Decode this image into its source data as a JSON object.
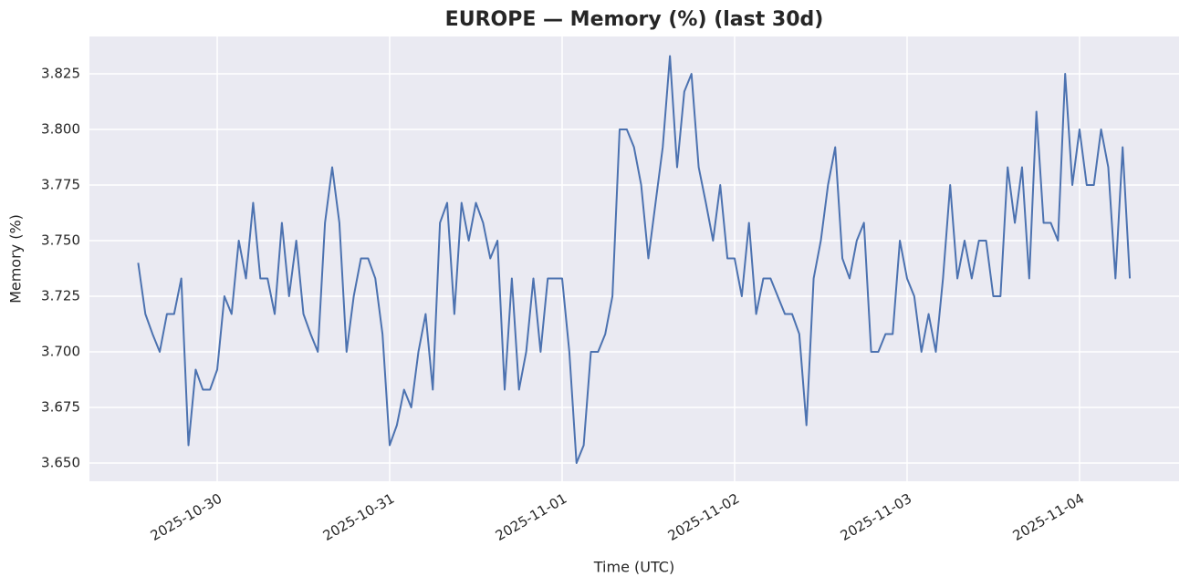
{
  "chart_data": {
    "type": "line",
    "title": "EUROPE — Memory (%) (last 30d)",
    "x_label": "Time (UTC)",
    "y_label": "Memory (%)",
    "x": [
      "2025-10-29 13:00",
      "2025-10-29 14:00",
      "2025-10-29 15:00",
      "2025-10-29 16:00",
      "2025-10-29 17:00",
      "2025-10-29 18:00",
      "2025-10-29 19:00",
      "2025-10-29 20:00",
      "2025-10-29 21:00",
      "2025-10-29 22:00",
      "2025-10-29 23:00",
      "2025-10-30 00:00",
      "2025-10-30 01:00",
      "2025-10-30 02:00",
      "2025-10-30 03:00",
      "2025-10-30 04:00",
      "2025-10-30 05:00",
      "2025-10-30 06:00",
      "2025-10-30 07:00",
      "2025-10-30 08:00",
      "2025-10-30 09:00",
      "2025-10-30 10:00",
      "2025-10-30 11:00",
      "2025-10-30 12:00",
      "2025-10-30 13:00",
      "2025-10-30 14:00",
      "2025-10-30 15:00",
      "2025-10-30 16:00",
      "2025-10-30 17:00",
      "2025-10-30 18:00",
      "2025-10-30 19:00",
      "2025-10-30 20:00",
      "2025-10-30 21:00",
      "2025-10-30 22:00",
      "2025-10-30 23:00",
      "2025-10-31 00:00",
      "2025-10-31 01:00",
      "2025-10-31 02:00",
      "2025-10-31 03:00",
      "2025-10-31 04:00",
      "2025-10-31 05:00",
      "2025-10-31 06:00",
      "2025-10-31 07:00",
      "2025-10-31 08:00",
      "2025-10-31 09:00",
      "2025-10-31 10:00",
      "2025-10-31 11:00",
      "2025-10-31 12:00",
      "2025-10-31 13:00",
      "2025-10-31 14:00",
      "2025-10-31 15:00",
      "2025-10-31 16:00",
      "2025-10-31 17:00",
      "2025-10-31 18:00",
      "2025-10-31 19:00",
      "2025-10-31 20:00",
      "2025-10-31 21:00",
      "2025-10-31 22:00",
      "2025-10-31 23:00",
      "2025-11-01 00:00",
      "2025-11-01 01:00",
      "2025-11-01 02:00",
      "2025-11-01 03:00",
      "2025-11-01 04:00",
      "2025-11-01 05:00",
      "2025-11-01 06:00",
      "2025-11-01 07:00",
      "2025-11-01 08:00",
      "2025-11-01 09:00",
      "2025-11-01 10:00",
      "2025-11-01 11:00",
      "2025-11-01 12:00",
      "2025-11-01 13:00",
      "2025-11-01 14:00",
      "2025-11-01 15:00",
      "2025-11-01 16:00",
      "2025-11-01 17:00",
      "2025-11-01 18:00",
      "2025-11-01 19:00",
      "2025-11-01 20:00",
      "2025-11-01 21:00",
      "2025-11-01 22:00",
      "2025-11-01 23:00",
      "2025-11-02 00:00",
      "2025-11-02 01:00",
      "2025-11-02 02:00",
      "2025-11-02 03:00",
      "2025-11-02 04:00",
      "2025-11-02 05:00",
      "2025-11-02 06:00",
      "2025-11-02 07:00",
      "2025-11-02 08:00",
      "2025-11-02 09:00",
      "2025-11-02 10:00",
      "2025-11-02 11:00",
      "2025-11-02 12:00",
      "2025-11-02 13:00",
      "2025-11-02 14:00",
      "2025-11-02 15:00",
      "2025-11-02 16:00",
      "2025-11-02 17:00",
      "2025-11-02 18:00",
      "2025-11-02 19:00",
      "2025-11-02 20:00",
      "2025-11-02 21:00",
      "2025-11-02 22:00",
      "2025-11-02 23:00",
      "2025-11-03 00:00",
      "2025-11-03 01:00",
      "2025-11-03 02:00",
      "2025-11-03 03:00",
      "2025-11-03 04:00",
      "2025-11-03 05:00",
      "2025-11-03 06:00",
      "2025-11-03 07:00",
      "2025-11-03 08:00",
      "2025-11-03 09:00",
      "2025-11-03 10:00",
      "2025-11-03 11:00",
      "2025-11-03 12:00",
      "2025-11-03 13:00",
      "2025-11-03 14:00",
      "2025-11-03 15:00",
      "2025-11-03 16:00",
      "2025-11-03 17:00",
      "2025-11-03 18:00",
      "2025-11-03 19:00",
      "2025-11-03 20:00",
      "2025-11-03 21:00",
      "2025-11-03 22:00",
      "2025-11-03 23:00",
      "2025-11-04 00:00",
      "2025-11-04 01:00",
      "2025-11-04 02:00",
      "2025-11-04 03:00",
      "2025-11-04 04:00",
      "2025-11-04 05:00",
      "2025-11-04 06:00",
      "2025-11-04 07:00"
    ],
    "series": [
      {
        "name": "Memory (%)",
        "color": "#4c72b0",
        "values": [
          3.74,
          3.717,
          3.708,
          3.7,
          3.717,
          3.717,
          3.733,
          3.658,
          3.692,
          3.683,
          3.683,
          3.692,
          3.725,
          3.717,
          3.75,
          3.733,
          3.767,
          3.733,
          3.733,
          3.717,
          3.758,
          3.725,
          3.75,
          3.717,
          3.708,
          3.7,
          3.758,
          3.783,
          3.758,
          3.7,
          3.725,
          3.742,
          3.742,
          3.733,
          3.708,
          3.658,
          3.667,
          3.683,
          3.675,
          3.7,
          3.717,
          3.683,
          3.758,
          3.767,
          3.717,
          3.767,
          3.75,
          3.767,
          3.758,
          3.742,
          3.75,
          3.683,
          3.733,
          3.683,
          3.7,
          3.733,
          3.7,
          3.733,
          3.733,
          3.733,
          3.7,
          3.65,
          3.658,
          3.7,
          3.7,
          3.708,
          3.725,
          3.8,
          3.8,
          3.792,
          3.775,
          3.742,
          3.767,
          3.792,
          3.833,
          3.783,
          3.817,
          3.825,
          3.783,
          3.767,
          3.75,
          3.775,
          3.742,
          3.742,
          3.725,
          3.758,
          3.717,
          3.733,
          3.733,
          3.725,
          3.717,
          3.717,
          3.708,
          3.667,
          3.733,
          3.75,
          3.775,
          3.792,
          3.742,
          3.733,
          3.75,
          3.758,
          3.7,
          3.7,
          3.708,
          3.708,
          3.75,
          3.733,
          3.725,
          3.7,
          3.717,
          3.7,
          3.733,
          3.775,
          3.733,
          3.75,
          3.733,
          3.75,
          3.75,
          3.725,
          3.725,
          3.783,
          3.758,
          3.783,
          3.733,
          3.808,
          3.758,
          3.758,
          3.75,
          3.825,
          3.775,
          3.8,
          3.775,
          3.775,
          3.8,
          3.783,
          3.733,
          3.792,
          3.733
        ]
      }
    ],
    "xlim": [
      "2025-10-29 06:13",
      "2025-11-04 13:51"
    ],
    "xticks": [
      "2025-10-30",
      "2025-10-31",
      "2025-11-01",
      "2025-11-02",
      "2025-11-03",
      "2025-11-04"
    ],
    "ylim": [
      3.6418,
      3.8418
    ],
    "yticks": [
      {
        "value": 3.65,
        "label": "3.650"
      },
      {
        "value": 3.675,
        "label": "3.675"
      },
      {
        "value": 3.7,
        "label": "3.700"
      },
      {
        "value": 3.725,
        "label": "3.725"
      },
      {
        "value": 3.75,
        "label": "3.750"
      },
      {
        "value": 3.775,
        "label": "3.775"
      },
      {
        "value": 3.8,
        "label": "3.800"
      },
      {
        "value": 3.825,
        "label": "3.825"
      }
    ],
    "grid": true
  }
}
